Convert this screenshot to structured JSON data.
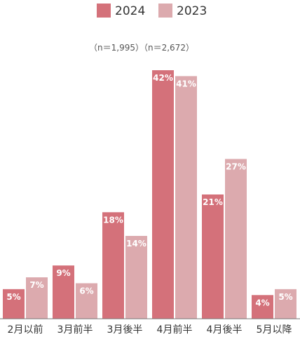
{
  "chart_data": {
    "type": "bar",
    "categories": [
      "2月以前",
      "3月前半",
      "3月後半",
      "4月前半",
      "4月後半",
      "5月以降"
    ],
    "series": [
      {
        "name": "2024",
        "values": [
          5,
          9,
          18,
          42,
          21,
          4
        ],
        "color": "#d4717a"
      },
      {
        "name": "2023",
        "values": [
          7,
          6,
          14,
          41,
          27,
          5
        ],
        "color": "#dcaaae"
      }
    ],
    "value_suffix": "%",
    "sample_sizes": "（n＝1,995）（n＝2,672）",
    "ylim": [
      0,
      42
    ],
    "legend_position": "top-center",
    "grid": false
  }
}
